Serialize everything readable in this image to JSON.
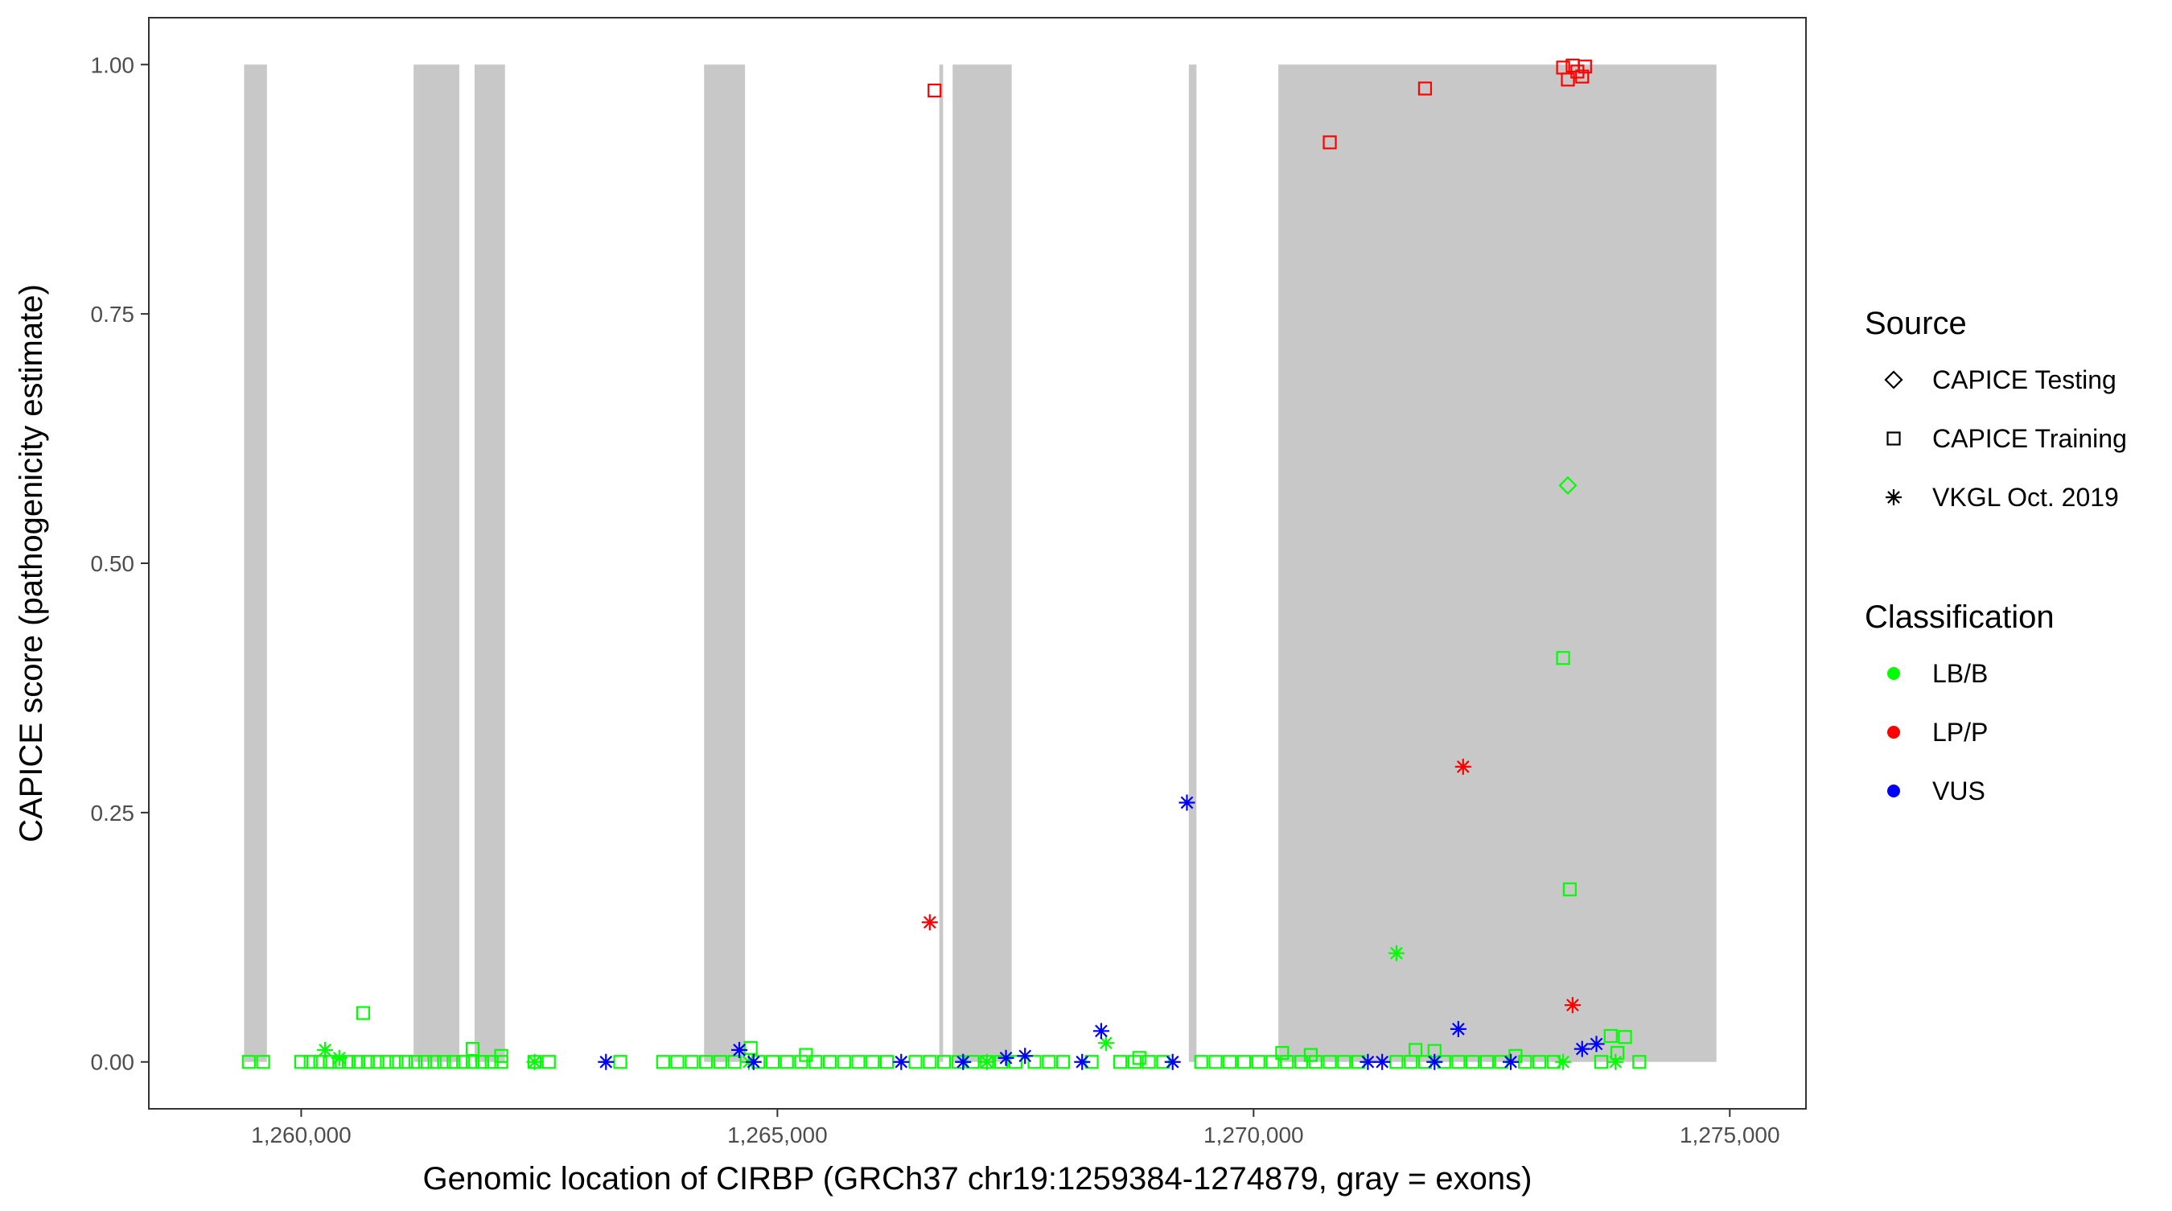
{
  "chart_data": {
    "type": "scatter",
    "xlabel": "Genomic location of CIRBP (GRCh37 chr19:1259384-1274879, gray = exons)",
    "ylabel": "CAPICE score (pathogenicity estimate)",
    "xlim": [
      1258400,
      1275800
    ],
    "ylim": [
      -0.047,
      1.047
    ],
    "x_ticks": [
      1260000,
      1265000,
      1270000,
      1275000
    ],
    "x_tick_labels": [
      "1,260,000",
      "1,265,000",
      "1,270,000",
      "1,275,000"
    ],
    "y_ticks": [
      0,
      0.25,
      0.5,
      0.75,
      1.0
    ],
    "y_tick_labels": [
      "0.00",
      "0.25",
      "0.50",
      "0.75",
      "1.00"
    ],
    "grid": false,
    "exon_color": "#c8c8c8",
    "exons": [
      [
        1259400,
        1259640
      ],
      [
        1261180,
        1261660
      ],
      [
        1261820,
        1262140
      ],
      [
        1264230,
        1264660
      ],
      [
        1266700,
        1266740
      ],
      [
        1266840,
        1267460
      ],
      [
        1269320,
        1269400
      ],
      [
        1270260,
        1274860
      ]
    ],
    "legends": [
      {
        "title": "Source",
        "position": "right",
        "entries": [
          {
            "label": "CAPICE Testing",
            "shape": "diamond"
          },
          {
            "label": "CAPICE Training",
            "shape": "square"
          },
          {
            "label": "VKGL Oct. 2019",
            "shape": "asterisk"
          }
        ]
      },
      {
        "title": "Classification",
        "position": "right",
        "entries": [
          {
            "label": "LB/B",
            "color": "#00ff00"
          },
          {
            "label": "LP/P",
            "color": "#ff0000"
          },
          {
            "label": "VUS",
            "color": "#0000ff"
          }
        ]
      }
    ],
    "colors": {
      "LB/B": "#00ff00",
      "LP/P": "#ff0000",
      "VUS": "#0000ff"
    },
    "points": [
      {
        "x": 1266650,
        "y": 0.974,
        "class": "LP/P",
        "source": "CAPICE Training"
      },
      {
        "x": 1270800,
        "y": 0.922,
        "class": "LP/P",
        "source": "CAPICE Training"
      },
      {
        "x": 1271800,
        "y": 0.976,
        "class": "LP/P",
        "source": "CAPICE Training"
      },
      {
        "x": 1273250,
        "y": 0.997,
        "class": "LP/P",
        "source": "CAPICE Training"
      },
      {
        "x": 1273300,
        "y": 0.985,
        "class": "LP/P",
        "source": "CAPICE Training"
      },
      {
        "x": 1273350,
        "y": 0.999,
        "class": "LP/P",
        "source": "CAPICE Training"
      },
      {
        "x": 1273400,
        "y": 0.993,
        "class": "LP/P",
        "source": "CAPICE Training"
      },
      {
        "x": 1273450,
        "y": 0.988,
        "class": "LP/P",
        "source": "CAPICE Training"
      },
      {
        "x": 1273480,
        "y": 0.998,
        "class": "LP/P",
        "source": "CAPICE Training"
      },
      {
        "x": 1266600,
        "y": 0.14,
        "class": "LP/P",
        "source": "VKGL Oct. 2019"
      },
      {
        "x": 1272200,
        "y": 0.296,
        "class": "LP/P",
        "source": "VKGL Oct. 2019"
      },
      {
        "x": 1273350,
        "y": 0.057,
        "class": "LP/P",
        "source": "VKGL Oct. 2019"
      },
      {
        "x": 1273300,
        "y": 0.578,
        "class": "LB/B",
        "source": "CAPICE Testing"
      },
      {
        "x": 1273250,
        "y": 0.405,
        "class": "LB/B",
        "source": "CAPICE Training"
      },
      {
        "x": 1273320,
        "y": 0.173,
        "class": "LB/B",
        "source": "CAPICE Training"
      },
      {
        "x": 1271500,
        "y": 0.109,
        "class": "LB/B",
        "source": "VKGL Oct. 2019"
      },
      {
        "x": 1260650,
        "y": 0.049,
        "class": "LB/B",
        "source": "CAPICE Training"
      },
      {
        "x": 1261800,
        "y": 0.013,
        "class": "LB/B",
        "source": "CAPICE Training"
      },
      {
        "x": 1262100,
        "y": 0.006,
        "class": "LB/B",
        "source": "CAPICE Training"
      },
      {
        "x": 1264720,
        "y": 0.014,
        "class": "LB/B",
        "source": "CAPICE Training"
      },
      {
        "x": 1265300,
        "y": 0.007,
        "class": "LB/B",
        "source": "CAPICE Training"
      },
      {
        "x": 1268800,
        "y": 0.004,
        "class": "LB/B",
        "source": "CAPICE Training"
      },
      {
        "x": 1270300,
        "y": 0.009,
        "class": "LB/B",
        "source": "CAPICE Training"
      },
      {
        "x": 1270600,
        "y": 0.007,
        "class": "LB/B",
        "source": "CAPICE Training"
      },
      {
        "x": 1271700,
        "y": 0.012,
        "class": "LB/B",
        "source": "CAPICE Training"
      },
      {
        "x": 1271900,
        "y": 0.011,
        "class": "LB/B",
        "source": "CAPICE Training"
      },
      {
        "x": 1272750,
        "y": 0.006,
        "class": "LB/B",
        "source": "CAPICE Training"
      },
      {
        "x": 1273750,
        "y": 0.026,
        "class": "LB/B",
        "source": "CAPICE Training"
      },
      {
        "x": 1273900,
        "y": 0.025,
        "class": "LB/B",
        "source": "CAPICE Training"
      },
      {
        "x": 1273820,
        "y": 0.009,
        "class": "LB/B",
        "source": "CAPICE Training"
      },
      {
        "x": 1260250,
        "y": 0.012,
        "class": "LB/B",
        "source": "VKGL Oct. 2019"
      },
      {
        "x": 1260400,
        "y": 0.004,
        "class": "LB/B",
        "source": "VKGL Oct. 2019"
      },
      {
        "x": 1268450,
        "y": 0.019,
        "class": "LB/B",
        "source": "VKGL Oct. 2019"
      },
      {
        "x": 1273800,
        "y": 0.0,
        "class": "LB/B",
        "source": "VKGL Oct. 2019"
      },
      {
        "x": 1273250,
        "y": 0.0,
        "class": "LB/B",
        "source": "VKGL Oct. 2019"
      },
      {
        "x": 1262450,
        "y": 0.0,
        "class": "LB/B",
        "source": "VKGL Oct. 2019"
      },
      {
        "x": 1264700,
        "y": 0.0,
        "class": "LB/B",
        "source": "VKGL Oct. 2019"
      },
      {
        "x": 1267200,
        "y": 0.0,
        "class": "LB/B",
        "source": "VKGL Oct. 2019"
      },
      {
        "x": 1269300,
        "y": 0.26,
        "class": "VUS",
        "source": "VKGL Oct. 2019"
      },
      {
        "x": 1268400,
        "y": 0.031,
        "class": "VUS",
        "source": "VKGL Oct. 2019"
      },
      {
        "x": 1272150,
        "y": 0.033,
        "class": "VUS",
        "source": "VKGL Oct. 2019"
      },
      {
        "x": 1273600,
        "y": 0.018,
        "class": "VUS",
        "source": "VKGL Oct. 2019"
      },
      {
        "x": 1273450,
        "y": 0.013,
        "class": "VUS",
        "source": "VKGL Oct. 2019"
      },
      {
        "x": 1264600,
        "y": 0.012,
        "class": "VUS",
        "source": "VKGL Oct. 2019"
      },
      {
        "x": 1267600,
        "y": 0.006,
        "class": "VUS",
        "source": "VKGL Oct. 2019"
      },
      {
        "x": 1267400,
        "y": 0.004,
        "class": "VUS",
        "source": "VKGL Oct. 2019"
      },
      {
        "x": 1263200,
        "y": 0.0,
        "class": "VUS",
        "source": "VKGL Oct. 2019"
      },
      {
        "x": 1264750,
        "y": 0.0,
        "class": "VUS",
        "source": "VKGL Oct. 2019"
      },
      {
        "x": 1266300,
        "y": 0.0,
        "class": "VUS",
        "source": "VKGL Oct. 2019"
      },
      {
        "x": 1266950,
        "y": 0.0,
        "class": "VUS",
        "source": "VKGL Oct. 2019"
      },
      {
        "x": 1268200,
        "y": 0.0,
        "class": "VUS",
        "source": "VKGL Oct. 2019"
      },
      {
        "x": 1269150,
        "y": 0.0,
        "class": "VUS",
        "source": "VKGL Oct. 2019"
      },
      {
        "x": 1271200,
        "y": 0.0,
        "class": "VUS",
        "source": "VKGL Oct. 2019"
      },
      {
        "x": 1271350,
        "y": 0.0,
        "class": "VUS",
        "source": "VKGL Oct. 2019"
      },
      {
        "x": 1271900,
        "y": 0.0,
        "class": "VUS",
        "source": "VKGL Oct. 2019"
      },
      {
        "x": 1272700,
        "y": 0.0,
        "class": "VUS",
        "source": "VKGL Oct. 2019"
      }
    ],
    "baseline_series": [
      {
        "class": "LB/B",
        "source": "CAPICE Training",
        "y": 0.0,
        "x": [
          1259450,
          1259600,
          1260000,
          1260100,
          1260200,
          1260300,
          1260400,
          1260500,
          1260600,
          1260700,
          1260800,
          1260900,
          1261000,
          1261100,
          1261200,
          1261300,
          1261400,
          1261500,
          1261600,
          1261700,
          1261800,
          1261900,
          1262000,
          1262100,
          1262450,
          1262600,
          1263350,
          1263800,
          1263950,
          1264100,
          1264250,
          1264400,
          1264550,
          1264800,
          1264950,
          1265100,
          1265250,
          1265400,
          1265550,
          1265700,
          1265850,
          1266000,
          1266150,
          1266450,
          1266600,
          1266750,
          1266900,
          1267050,
          1267200,
          1267350,
          1267500,
          1267700,
          1267850,
          1268000,
          1268300,
          1268600,
          1268750,
          1268900,
          1269050,
          1269450,
          1269600,
          1269750,
          1269900,
          1270050,
          1270200,
          1270350,
          1270500,
          1270650,
          1270800,
          1270950,
          1271100,
          1271500,
          1271650,
          1271800,
          1272000,
          1272150,
          1272300,
          1272450,
          1272600,
          1272850,
          1273000,
          1273150,
          1273650,
          1274050
        ]
      }
    ]
  }
}
